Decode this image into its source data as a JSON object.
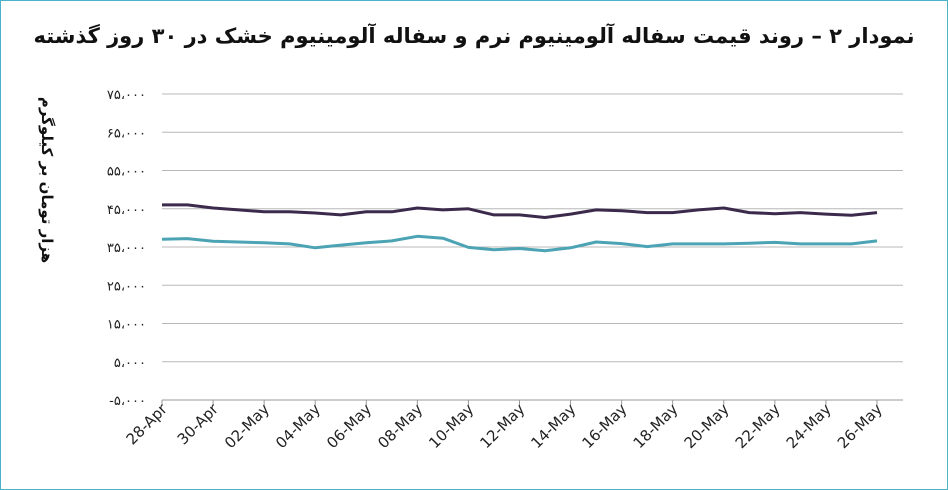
{
  "chart_data": {
    "type": "line",
    "title": "نمودار ۲ – روند قیمت سفاله آلومینیوم نرم و سفاله آلومینیوم خشک در ۳۰ روز گذشته",
    "ylabel": "هزار تومان بر کیلوگرم",
    "xlabel": "",
    "ylim": [
      -5000,
      75000
    ],
    "yticks": [
      -5000,
      5000,
      15000,
      25000,
      35000,
      45000,
      55000,
      65000,
      75000
    ],
    "ytick_labels": [
      "-۵،۰۰۰",
      "۵،۰۰۰",
      "۱۵،۰۰۰",
      "۲۵،۰۰۰",
      "۳۵،۰۰۰",
      "۴۵،۰۰۰",
      "۵۵،۰۰۰",
      "۶۵،۰۰۰",
      "۷۵،۰۰۰"
    ],
    "x_labels": [
      "28-Apr",
      "30-Apr",
      "02-May",
      "04-May",
      "06-May",
      "08-May",
      "10-May",
      "12-May",
      "14-May",
      "16-May",
      "18-May",
      "20-May",
      "22-May",
      "24-May",
      "26-May"
    ],
    "grid": true,
    "legend": "none",
    "series": [
      {
        "color": "#3c2a4d",
        "values": [
          46000,
          46000,
          45200,
          44700,
          44200,
          44200,
          43900,
          43400,
          44200,
          44200,
          45200,
          44700,
          45000,
          43400,
          43400,
          42700,
          43600,
          44700,
          44500,
          44000,
          44000,
          44700,
          45200,
          44000,
          43700,
          44000,
          43600,
          43300,
          44000
        ]
      },
      {
        "color": "#4ba3b4",
        "values": [
          37000,
          37200,
          36500,
          36300,
          36100,
          35800,
          34800,
          35500,
          36100,
          36600,
          37800,
          37300,
          34900,
          34300,
          34600,
          34000,
          34800,
          36300,
          35900,
          35100,
          35800,
          35800,
          35800,
          36000,
          36200,
          35800,
          35800,
          35800,
          36600
        ]
      }
    ]
  }
}
